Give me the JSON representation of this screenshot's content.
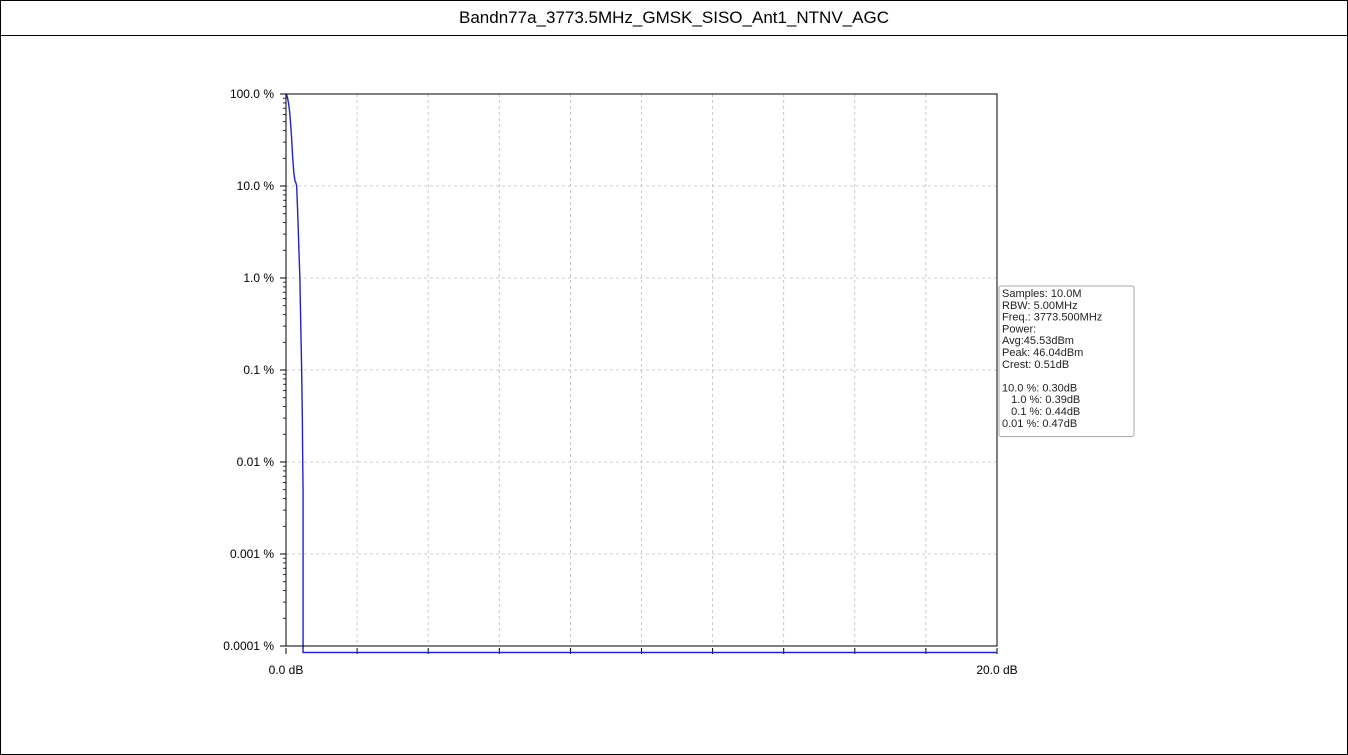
{
  "page": {
    "title": "Bandn77a_3773.5MHz_GMSK_SISO_Ant1_NTNV_AGC"
  },
  "colors": {
    "line": "#2222cc",
    "grid": "#bdbdbd",
    "axis": "#000000",
    "legend_border": "#aaaaaa"
  },
  "chart_data": {
    "type": "line",
    "title": "Bandn77a_3773.5MHz_GMSK_SISO_Ant1_NTNV_AGC",
    "xlabel": "",
    "ylabel": "",
    "xscale": "linear",
    "yscale": "log",
    "xlim": [
      0,
      20
    ],
    "ylim": [
      0.0001,
      100
    ],
    "grid": true,
    "x_tick_labels": [
      {
        "value": 0,
        "label": "0.0 dB"
      },
      {
        "value": 20,
        "label": "20.0 dB"
      }
    ],
    "x_minor_ticks": [
      2,
      4,
      6,
      8,
      10,
      12,
      14,
      16,
      18
    ],
    "y_tick_labels": [
      {
        "value": 100,
        "label": "100.0 %"
      },
      {
        "value": 10,
        "label": "10.0 %"
      },
      {
        "value": 1,
        "label": "1.0 %"
      },
      {
        "value": 0.1,
        "label": "0.1 %"
      },
      {
        "value": 0.01,
        "label": "0.01 %"
      },
      {
        "value": 0.001,
        "label": "0.001 %"
      },
      {
        "value": 0.0001,
        "label": "0.0001 %"
      }
    ],
    "reference_line": {
      "y": 0.0001
    },
    "series": [
      {
        "x": [
          0,
          0.02,
          0.04,
          0.07,
          0.1,
          0.13,
          0.16,
          0.19,
          0.22,
          0.25,
          0.28,
          0.3,
          0.33,
          0.36,
          0.39,
          0.42,
          0.44,
          0.46,
          0.47,
          0.48,
          0.48,
          20
        ],
        "y": [
          100,
          97,
          92,
          80,
          65,
          48,
          32,
          20,
          14,
          11.5,
          10.8,
          10,
          5,
          2.2,
          1,
          0.25,
          0.1,
          0.03,
          0.01,
          0.005,
          8.5e-05,
          8.5e-05
        ]
      }
    ],
    "legend": {
      "placement": "right",
      "lines": [
        "Samples: 10.0M",
        "RBW: 5.00MHz",
        "Freq.: 3773.500MHz",
        "Power:",
        "Avg:45.53dBm",
        "Peak: 46.04dBm",
        "Crest: 0.51dB",
        "",
        "10.0 %: 0.30dB",
        "   1.0 %: 0.39dB",
        "   0.1 %: 0.44dB",
        "0.01 %: 0.47dB"
      ]
    }
  }
}
